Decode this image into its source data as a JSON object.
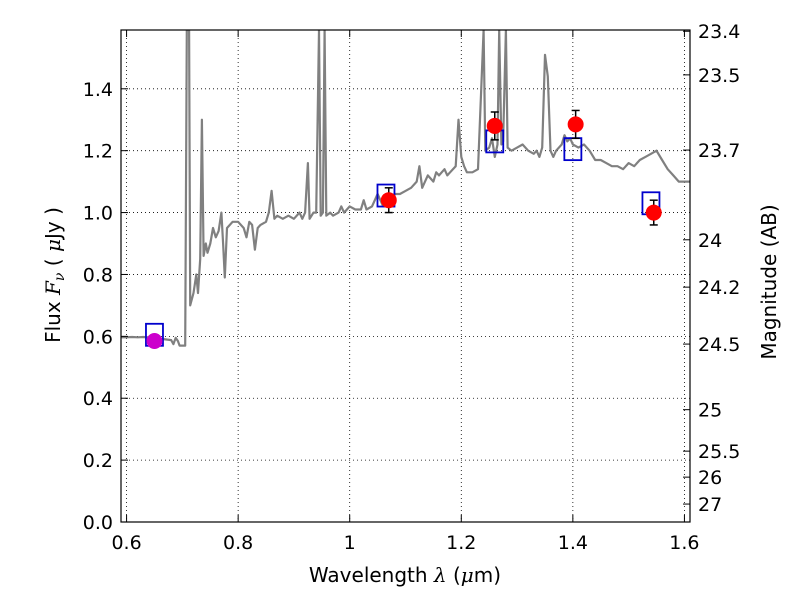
{
  "chart_data": {
    "type": "line",
    "xlabel_parts": [
      "Wavelength  ",
      "λ",
      " (",
      "μ",
      "m)"
    ],
    "ylabel_parts": [
      "Flux  ",
      "F",
      "ν",
      "  ( ",
      "μ",
      "Jy )"
    ],
    "y2label": "Magnitude (AB)",
    "xlim": [
      0.59,
      1.61
    ],
    "ylim": [
      0.0,
      1.59
    ],
    "grid": true,
    "x_ticks": [
      {
        "value": 0.6,
        "label": "0.6"
      },
      {
        "value": 0.8,
        "label": "0.8"
      },
      {
        "value": 1.0,
        "label": "1"
      },
      {
        "value": 1.2,
        "label": "1.2"
      },
      {
        "value": 1.4,
        "label": "1.4"
      },
      {
        "value": 1.6,
        "label": "1.6"
      }
    ],
    "y_ticks": [
      {
        "value": 0.0,
        "label": "0.0"
      },
      {
        "value": 0.2,
        "label": "0.2"
      },
      {
        "value": 0.4,
        "label": "0.4"
      },
      {
        "value": 0.6,
        "label": "0.6"
      },
      {
        "value": 0.8,
        "label": "0.8"
      },
      {
        "value": 1.0,
        "label": "1.0"
      },
      {
        "value": 1.2,
        "label": "1.2"
      },
      {
        "value": 1.4,
        "label": "1.4"
      }
    ],
    "y2_ticks": [
      {
        "label": "23.4",
        "flux": 1.586
      },
      {
        "label": "23.5",
        "flux": 1.445
      },
      {
        "label": "23.7",
        "flux": 1.202
      },
      {
        "label": "24",
        "flux": 0.912
      },
      {
        "label": "24.2",
        "flux": 0.759
      },
      {
        "label": "24.5",
        "flux": 0.575
      },
      {
        "label": "25",
        "flux": 0.363
      },
      {
        "label": "25.5",
        "flux": 0.229
      },
      {
        "label": "26",
        "flux": 0.145
      },
      {
        "label": "27",
        "flux": 0.058
      }
    ],
    "series": [
      {
        "kind": "model-spectrum",
        "color": "#808080",
        "points": [
          [
            0.59,
            0.597
          ],
          [
            0.6,
            0.597
          ],
          [
            0.61,
            0.598
          ],
          [
            0.62,
            0.597
          ],
          [
            0.63,
            0.598
          ],
          [
            0.64,
            0.597
          ],
          [
            0.65,
            0.598
          ],
          [
            0.66,
            0.592
          ],
          [
            0.67,
            0.59
          ],
          [
            0.68,
            0.588
          ],
          [
            0.684,
            0.575
          ],
          [
            0.688,
            0.595
          ],
          [
            0.692,
            0.585
          ],
          [
            0.695,
            0.57
          ],
          [
            0.7,
            0.57
          ],
          [
            0.705,
            0.57
          ],
          [
            0.708,
            1.6
          ],
          [
            0.712,
            1.6
          ],
          [
            0.714,
            0.7
          ],
          [
            0.72,
            0.74
          ],
          [
            0.725,
            0.8
          ],
          [
            0.728,
            0.74
          ],
          [
            0.732,
            0.85
          ],
          [
            0.735,
            1.3
          ],
          [
            0.738,
            0.86
          ],
          [
            0.742,
            0.9
          ],
          [
            0.745,
            0.87
          ],
          [
            0.75,
            0.9
          ],
          [
            0.755,
            0.95
          ],
          [
            0.76,
            0.92
          ],
          [
            0.765,
            0.94
          ],
          [
            0.77,
            1.0
          ],
          [
            0.773,
            0.9
          ],
          [
            0.776,
            0.79
          ],
          [
            0.78,
            0.95
          ],
          [
            0.79,
            0.97
          ],
          [
            0.8,
            0.97
          ],
          [
            0.81,
            0.95
          ],
          [
            0.815,
            0.92
          ],
          [
            0.82,
            0.97
          ],
          [
            0.825,
            0.96
          ],
          [
            0.83,
            0.88
          ],
          [
            0.835,
            0.95
          ],
          [
            0.84,
            0.96
          ],
          [
            0.85,
            0.97
          ],
          [
            0.855,
            1.0
          ],
          [
            0.86,
            1.07
          ],
          [
            0.865,
            0.98
          ],
          [
            0.87,
            0.99
          ],
          [
            0.88,
            0.98
          ],
          [
            0.89,
            0.99
          ],
          [
            0.9,
            0.98
          ],
          [
            0.91,
            1.0
          ],
          [
            0.915,
            0.98
          ],
          [
            0.92,
            1.0
          ],
          [
            0.925,
            1.16
          ],
          [
            0.928,
            0.98
          ],
          [
            0.935,
            1.0
          ],
          [
            0.94,
            1.0
          ],
          [
            0.945,
            1.6
          ],
          [
            0.948,
            0.99
          ],
          [
            0.952,
            1.0
          ],
          [
            0.955,
            1.6
          ],
          [
            0.958,
            0.99
          ],
          [
            0.965,
            1.0
          ],
          [
            0.97,
            0.99
          ],
          [
            0.98,
            1.0
          ],
          [
            0.985,
            1.02
          ],
          [
            0.99,
            1.0
          ],
          [
            1.0,
            1.02
          ],
          [
            1.01,
            1.01
          ],
          [
            1.02,
            1.01
          ],
          [
            1.025,
            1.04
          ],
          [
            1.03,
            1.01
          ],
          [
            1.04,
            1.02
          ],
          [
            1.05,
            1.06
          ],
          [
            1.06,
            1.02
          ],
          [
            1.065,
            1.05
          ],
          [
            1.07,
            1.03
          ],
          [
            1.08,
            1.06
          ],
          [
            1.09,
            1.06
          ],
          [
            1.1,
            1.07
          ],
          [
            1.11,
            1.08
          ],
          [
            1.12,
            1.1
          ],
          [
            1.125,
            1.15
          ],
          [
            1.13,
            1.08
          ],
          [
            1.14,
            1.12
          ],
          [
            1.15,
            1.1
          ],
          [
            1.155,
            1.13
          ],
          [
            1.16,
            1.12
          ],
          [
            1.17,
            1.14
          ],
          [
            1.175,
            1.12
          ],
          [
            1.18,
            1.13
          ],
          [
            1.19,
            1.15
          ],
          [
            1.195,
            1.3
          ],
          [
            1.2,
            1.18
          ],
          [
            1.205,
            1.15
          ],
          [
            1.21,
            1.13
          ],
          [
            1.22,
            1.13
          ],
          [
            1.23,
            1.14
          ],
          [
            1.24,
            1.6
          ],
          [
            1.243,
            1.2
          ],
          [
            1.25,
            1.21
          ],
          [
            1.255,
            1.24
          ],
          [
            1.26,
            1.18
          ],
          [
            1.265,
            1.22
          ],
          [
            1.268,
            1.6
          ],
          [
            1.272,
            1.22
          ],
          [
            1.275,
            1.23
          ],
          [
            1.28,
            1.6
          ],
          [
            1.283,
            1.21
          ],
          [
            1.29,
            1.2
          ],
          [
            1.3,
            1.21
          ],
          [
            1.31,
            1.22
          ],
          [
            1.32,
            1.2
          ],
          [
            1.33,
            1.19
          ],
          [
            1.335,
            1.2
          ],
          [
            1.34,
            1.18
          ],
          [
            1.345,
            1.21
          ],
          [
            1.35,
            1.51
          ],
          [
            1.355,
            1.44
          ],
          [
            1.36,
            1.2
          ],
          [
            1.365,
            1.18
          ],
          [
            1.37,
            1.2
          ],
          [
            1.38,
            1.22
          ],
          [
            1.385,
            1.25
          ],
          [
            1.39,
            1.23
          ],
          [
            1.395,
            1.24
          ],
          [
            1.4,
            1.22
          ],
          [
            1.41,
            1.21
          ],
          [
            1.42,
            1.22
          ],
          [
            1.43,
            1.2
          ],
          [
            1.44,
            1.17
          ],
          [
            1.45,
            1.17
          ],
          [
            1.46,
            1.16
          ],
          [
            1.47,
            1.15
          ],
          [
            1.48,
            1.15
          ],
          [
            1.49,
            1.14
          ],
          [
            1.5,
            1.16
          ],
          [
            1.51,
            1.15
          ],
          [
            1.52,
            1.17
          ],
          [
            1.53,
            1.18
          ],
          [
            1.54,
            1.19
          ],
          [
            1.55,
            1.2
          ],
          [
            1.56,
            1.17
          ],
          [
            1.57,
            1.14
          ],
          [
            1.58,
            1.12
          ],
          [
            1.59,
            1.1
          ],
          [
            1.6,
            1.1
          ],
          [
            1.61,
            1.1
          ]
        ]
      },
      {
        "kind": "model-photometry",
        "marker": "open-square",
        "color": "#0000cc",
        "points": [
          [
            0.65,
            0.605
          ],
          [
            1.065,
            1.055
          ],
          [
            1.26,
            1.23
          ],
          [
            1.4,
            1.205
          ],
          [
            1.54,
            1.03
          ]
        ]
      },
      {
        "kind": "observed-photometry",
        "marker": "filled-circle",
        "points": [
          {
            "x": 0.65,
            "y": 0.585,
            "err": 0.02,
            "color": "#cc00cc"
          },
          {
            "x": 1.07,
            "y": 1.04,
            "err": 0.04,
            "color": "#ff0000"
          },
          {
            "x": 1.26,
            "y": 1.28,
            "err": 0.045,
            "color": "#ff0000"
          },
          {
            "x": 1.405,
            "y": 1.285,
            "err": 0.045,
            "color": "#ff0000"
          },
          {
            "x": 1.545,
            "y": 1.0,
            "err": 0.04,
            "color": "#ff0000"
          }
        ]
      }
    ]
  }
}
